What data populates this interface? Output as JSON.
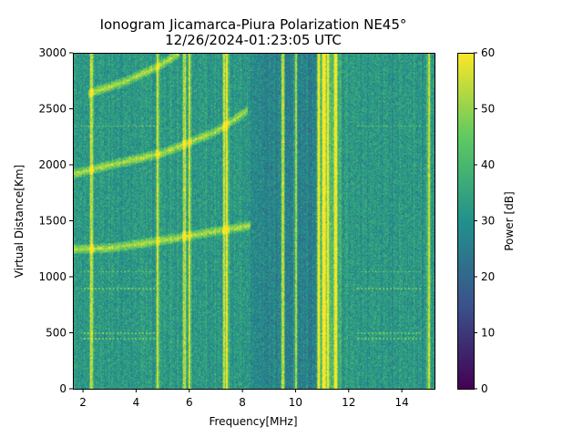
{
  "chart_data": {
    "type": "heatmap",
    "title": "Ionogram Jicamarca-Piura Polarization NE45°",
    "subtitle": "12/26/2024-01:23:05 UTC",
    "xlabel": "Frequency[MHz]",
    "ylabel": "Virtual Distance[Km]",
    "xlim": [
      1.62,
      15.23
    ],
    "ylim": [
      0,
      3000
    ],
    "xticks": [
      2,
      4,
      6,
      8,
      10,
      12,
      14
    ],
    "yticks": [
      0,
      500,
      1000,
      1500,
      2000,
      2500,
      3000
    ],
    "colorbar": {
      "label": "Power [dB]",
      "range": [
        0,
        60
      ],
      "ticks": [
        0,
        10,
        20,
        30,
        40,
        50,
        60
      ],
      "colormap": "viridis"
    },
    "background_power_db": 32,
    "echo_traces": [
      {
        "name": "first-hop",
        "points": [
          [
            1.6,
            1250
          ],
          [
            3,
            1260
          ],
          [
            5,
            1330
          ],
          [
            7,
            1410
          ],
          [
            8.3,
            1460
          ]
        ]
      },
      {
        "name": "second-hop",
        "points": [
          [
            1.6,
            1920
          ],
          [
            3,
            2000
          ],
          [
            5,
            2110
          ],
          [
            7,
            2300
          ],
          [
            8.2,
            2490
          ]
        ]
      },
      {
        "name": "third-hop",
        "points": [
          [
            2.2,
            2640
          ],
          [
            3.5,
            2740
          ],
          [
            4.8,
            2880
          ],
          [
            5.6,
            3000
          ]
        ]
      }
    ],
    "interference_lines_mhz": [
      2.3,
      4.8,
      5.8,
      6.0,
      7.3,
      7.4,
      9.5,
      10.0,
      10.85,
      11.05,
      11.2,
      11.5,
      15.0
    ],
    "horizontal_artifacts_km": [
      2350,
      1050,
      900,
      500,
      450
    ]
  }
}
